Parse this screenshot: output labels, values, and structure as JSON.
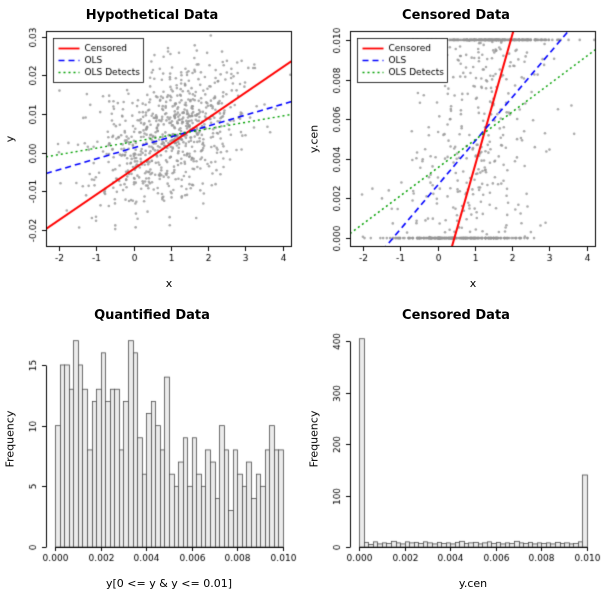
{
  "figure": {
    "background": "#ffffff"
  },
  "chart_data": [
    {
      "id": "hypothetical-scatter",
      "type": "scatter",
      "title": "Hypothetical Data",
      "xlabel": "x",
      "ylabel": "y",
      "xlim": [
        -2.35,
        4.25
      ],
      "ylim": [
        -0.0245,
        0.0315
      ],
      "xticks": [
        -2,
        -1,
        0,
        1,
        2,
        3,
        4
      ],
      "xtick_labels": [
        "-2",
        "-1",
        "0",
        "1",
        "2",
        "3",
        "4"
      ],
      "yticks": [
        -0.02,
        -0.01,
        0,
        0.01,
        0.02,
        0.03
      ],
      "ytick_labels": [
        "-0.02",
        "-0.01",
        "0.00",
        "0.01",
        "0.02",
        "0.03"
      ],
      "point_color": "#969696",
      "scatter": {
        "n": 800,
        "seed": 42,
        "x_mean": 1.0,
        "x_sd": 1.05,
        "intercept": 0.001,
        "slope": 0.004,
        "noise_sd": 0.0085
      },
      "lines": [
        {
          "label": "Censored",
          "color": "#ff0000",
          "style": "solid",
          "width": 2,
          "intercept": -0.0043,
          "slope": 0.0066
        },
        {
          "label": "OLS",
          "color": "#0000ff",
          "style": "dashed",
          "width": 1.6,
          "intercept": 0.0012,
          "slope": 0.00283
        },
        {
          "label": "OLS Detects",
          "color": "#00a000",
          "style": "dotted",
          "width": 1.4,
          "intercept": 0.0028,
          "slope": 0.00167
        }
      ],
      "legend": {
        "position": "topleft"
      }
    },
    {
      "id": "censored-scatter",
      "type": "scatter",
      "title": "Censored Data",
      "xlabel": "x",
      "ylabel": "y.cen",
      "xlim": [
        -2.35,
        4.25
      ],
      "ylim": [
        -0.00045,
        0.01045
      ],
      "xticks": [
        -2,
        -1,
        0,
        1,
        2,
        3,
        4
      ],
      "xtick_labels": [
        "-2",
        "-1",
        "0",
        "1",
        "2",
        "3",
        "4"
      ],
      "yticks": [
        0,
        0.002,
        0.004,
        0.006,
        0.008,
        0.01
      ],
      "ytick_labels": [
        "0.000",
        "0.002",
        "0.004",
        "0.006",
        "0.008",
        "0.010"
      ],
      "point_color": "#969696",
      "scatter": {
        "n": 800,
        "seed": 42,
        "x_mean": 1.0,
        "x_sd": 1.05,
        "intercept": 0.001,
        "slope": 0.004,
        "noise_sd": 0.0085,
        "censor_min": 0,
        "censor_max": 0.01
      },
      "lines": [
        {
          "label": "Censored",
          "color": "#ff0000",
          "style": "solid",
          "width": 2,
          "intercept": -0.00297,
          "slope": 0.0066
        },
        {
          "label": "OLS",
          "color": "#0000ff",
          "style": "dashed",
          "width": 1.6,
          "intercept": 0.00266,
          "slope": 0.00222
        },
        {
          "label": "OLS Detects",
          "color": "#00a000",
          "style": "dotted",
          "width": 1.4,
          "intercept": 0.00354,
          "slope": 0.00141
        }
      ],
      "legend": {
        "position": "topleft"
      }
    },
    {
      "id": "quantified-hist",
      "type": "histogram",
      "title": "Quantified Data",
      "xlabel": "y[0 <= y & y <= 0.01]",
      "ylabel": "Frequency",
      "bin_start": 0,
      "bin_width": 0.0002,
      "counts": [
        10,
        15,
        15,
        13,
        17,
        15,
        13,
        8,
        12,
        13,
        16,
        12,
        13,
        13,
        8,
        12,
        17,
        16,
        9,
        6,
        11,
        12,
        10,
        8,
        14,
        6,
        5,
        7,
        9,
        5,
        9,
        6,
        5,
        8,
        7,
        4,
        10,
        8,
        3,
        8,
        6,
        5,
        7,
        4,
        6,
        5,
        8,
        10,
        8,
        8
      ],
      "xlim": [
        -0.0004,
        0.0104
      ],
      "ylim": [
        0,
        17.8
      ],
      "xticks": [
        0,
        0.002,
        0.004,
        0.006,
        0.008,
        0.01
      ],
      "xtick_labels": [
        "0.000",
        "0.002",
        "0.004",
        "0.006",
        "0.008",
        "0.010"
      ],
      "yticks": [
        0,
        5,
        10,
        15
      ],
      "ytick_labels": [
        "0",
        "5",
        "10",
        "15"
      ],
      "bar_fill": "#ebebeb",
      "bar_stroke": "#4d4d4d"
    },
    {
      "id": "censored-hist",
      "type": "histogram",
      "title": "Censored Data",
      "xlabel": "y.cen",
      "ylabel": "Frequency",
      "bin_start": 0,
      "bin_width": 0.0002,
      "counts": [
        405,
        9,
        5,
        10,
        6,
        8,
        7,
        11,
        8,
        6,
        10,
        8,
        9,
        7,
        10,
        8,
        6,
        9,
        7,
        8,
        6,
        9,
        11,
        7,
        8,
        9,
        6,
        8,
        10,
        7,
        9,
        6,
        8,
        7,
        11,
        8,
        7,
        9,
        6,
        8,
        7,
        8,
        6,
        9,
        7,
        8,
        6,
        7,
        10,
        140
      ],
      "xlim": [
        -0.0004,
        0.0104
      ],
      "ylim": [
        0,
        420
      ],
      "xticks": [
        0,
        0.002,
        0.004,
        0.006,
        0.008,
        0.01
      ],
      "xtick_labels": [
        "0.000",
        "0.002",
        "0.004",
        "0.006",
        "0.008",
        "0.010"
      ],
      "yticks": [
        0,
        100,
        200,
        300,
        400
      ],
      "ytick_labels": [
        "0",
        "100",
        "200",
        "300",
        "400"
      ],
      "bar_fill": "#ebebeb",
      "bar_stroke": "#4d4d4d"
    }
  ]
}
